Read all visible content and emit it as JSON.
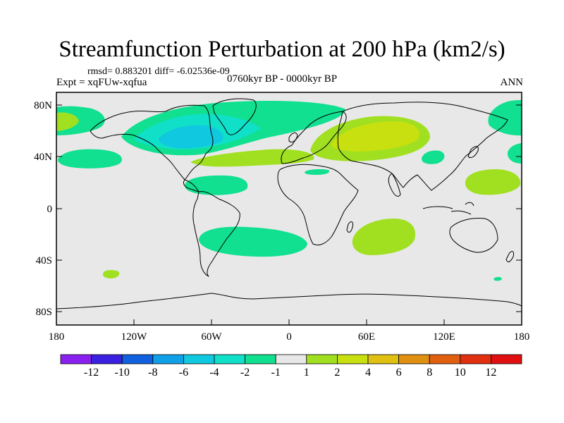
{
  "title": "Streamfunction Perturbation at 200 hPa (km2/s)",
  "stats": "rmsd= 0.883201 diff= -6.02536e-09",
  "experiment": "Expt = xqFUw-xqfua",
  "period": "0760kyr BP - 0000kyr BP",
  "season": "ANN",
  "lat_ticks": [
    "80N",
    "40N",
    "0",
    "40S",
    "80S"
  ],
  "lon_ticks": [
    "180",
    "120W",
    "60W",
    "0",
    "60E",
    "120E",
    "180"
  ],
  "colorbar": {
    "labels": [
      "-12",
      "-10",
      "-8",
      "-6",
      "-4",
      "-2",
      "-1",
      "1",
      "2",
      "4",
      "6",
      "8",
      "10",
      "12"
    ],
    "colors": [
      "#8a20f0",
      "#3a20e0",
      "#1060e0",
      "#10a0e8",
      "#10c8e0",
      "#10e0c8",
      "#10e090",
      "#e8e8e8",
      "#a0e020",
      "#c8e010",
      "#e0c010",
      "#e09010",
      "#e06010",
      "#e03010",
      "#e01010"
    ]
  },
  "colors": {
    "neutral": "#e8e8e8",
    "cyan_light": "#10e0c8",
    "cyan_mid": "#10c8e0",
    "green": "#10e090",
    "yellowgreen": "#a0e020",
    "yellow": "#c8e010",
    "ochre": "#e0c010"
  }
}
